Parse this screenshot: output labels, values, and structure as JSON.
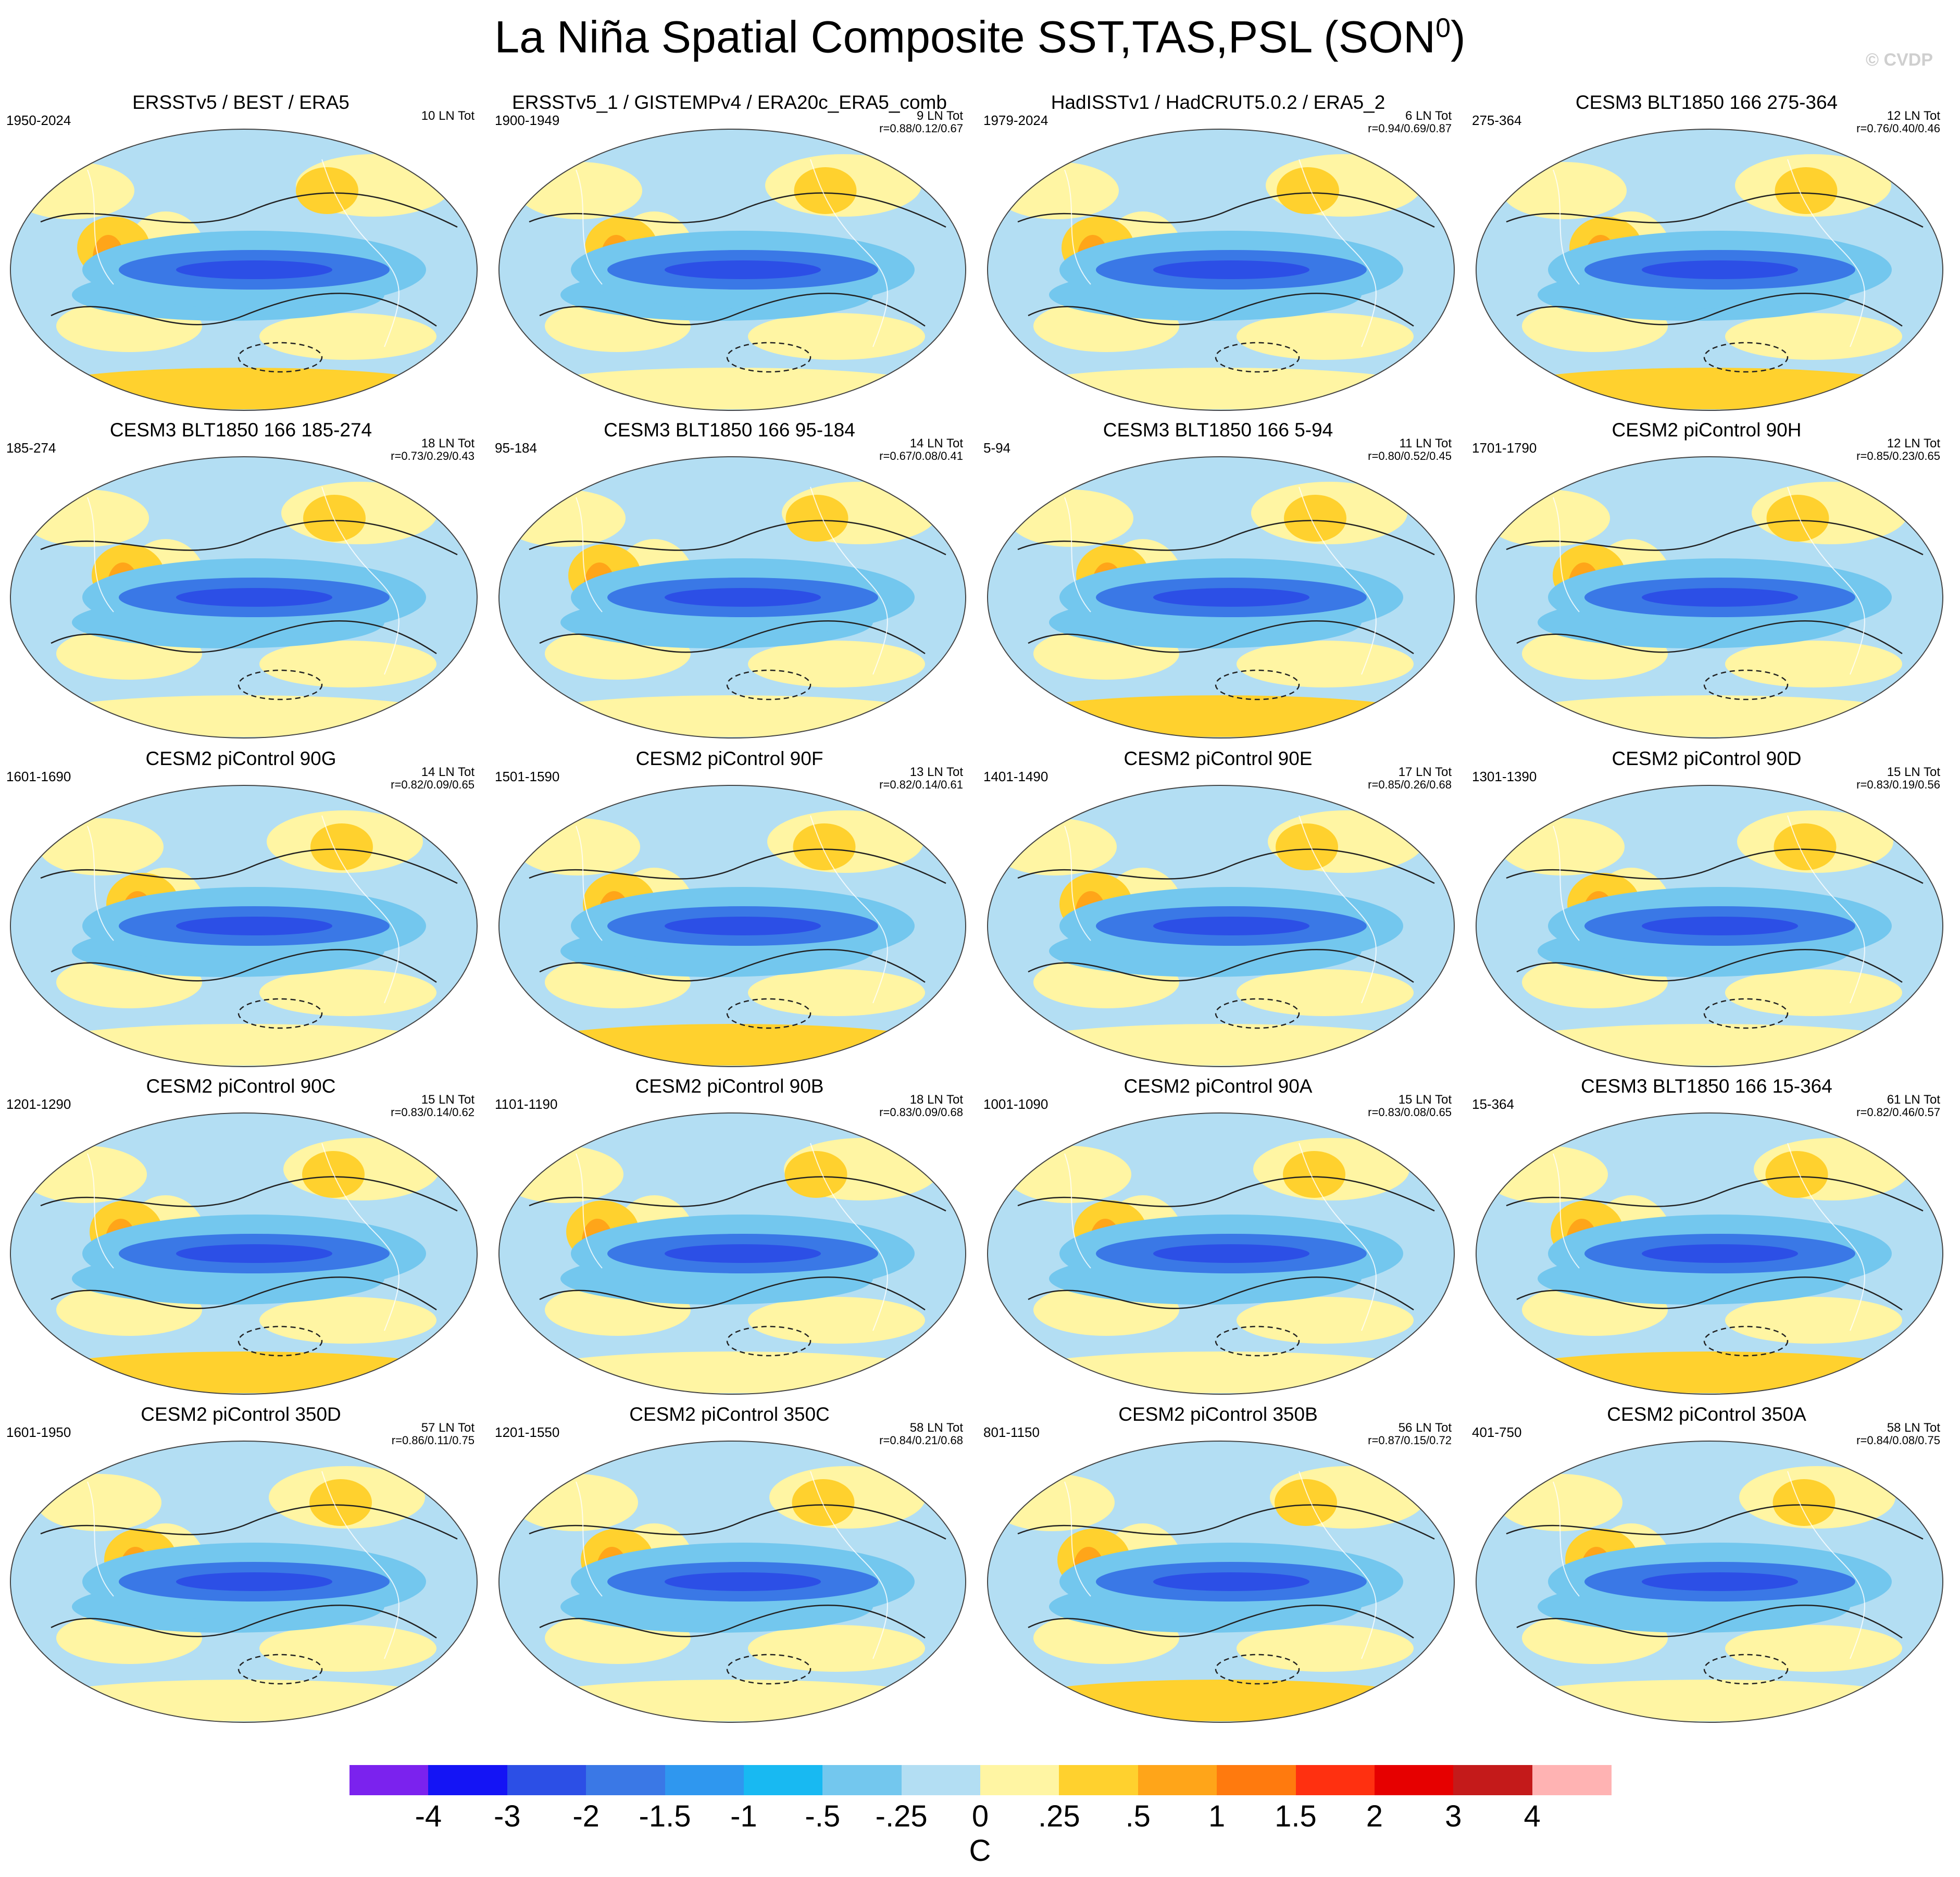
{
  "title": {
    "main": "La Niña Spatial Composite SST,TAS,PSL (SON",
    "sup": "0",
    "close": ")"
  },
  "watermark": "© CVDP",
  "panels": [
    {
      "title": "ERSSTv5 / BEST / ERA5",
      "years": "1950-2024",
      "lntot": "10 LN Tot",
      "stats": ""
    },
    {
      "title": "ERSSTv5_1 / GISTEMPv4 / ERA20c_ERA5_comb",
      "years": "1900-1949",
      "lntot": "9 LN Tot",
      "stats": "r=0.88/0.12/0.67"
    },
    {
      "title": "HadISSTv1 / HadCRUT5.0.2 / ERA5_2",
      "years": "1979-2024",
      "lntot": "6 LN Tot",
      "stats": "r=0.94/0.69/0.87"
    },
    {
      "title": "CESM3 BLT1850 166 275-364",
      "years": "275-364",
      "lntot": "12 LN Tot",
      "stats": "r=0.76/0.40/0.46"
    },
    {
      "title": "CESM3 BLT1850 166 185-274",
      "years": "185-274",
      "lntot": "18 LN Tot",
      "stats": "r=0.73/0.29/0.43"
    },
    {
      "title": "CESM3 BLT1850 166 95-184",
      "years": "95-184",
      "lntot": "14 LN Tot",
      "stats": "r=0.67/0.08/0.41"
    },
    {
      "title": "CESM3 BLT1850 166 5-94",
      "years": "5-94",
      "lntot": "11 LN Tot",
      "stats": "r=0.80/0.52/0.45"
    },
    {
      "title": "CESM2 piControl 90H",
      "years": "1701-1790",
      "lntot": "12 LN Tot",
      "stats": "r=0.85/0.23/0.65"
    },
    {
      "title": "CESM2 piControl 90G",
      "years": "1601-1690",
      "lntot": "14 LN Tot",
      "stats": "r=0.82/0.09/0.65"
    },
    {
      "title": "CESM2 piControl 90F",
      "years": "1501-1590",
      "lntot": "13 LN Tot",
      "stats": "r=0.82/0.14/0.61"
    },
    {
      "title": "CESM2 piControl 90E",
      "years": "1401-1490",
      "lntot": "17 LN Tot",
      "stats": "r=0.85/0.26/0.68"
    },
    {
      "title": "CESM2 piControl 90D",
      "years": "1301-1390",
      "lntot": "15 LN Tot",
      "stats": "r=0.83/0.19/0.56"
    },
    {
      "title": "CESM2 piControl 90C",
      "years": "1201-1290",
      "lntot": "15 LN Tot",
      "stats": "r=0.83/0.14/0.62"
    },
    {
      "title": "CESM2 piControl 90B",
      "years": "1101-1190",
      "lntot": "18 LN Tot",
      "stats": "r=0.83/0.09/0.68"
    },
    {
      "title": "CESM2 piControl 90A",
      "years": "1001-1090",
      "lntot": "15 LN Tot",
      "stats": "r=0.83/0.08/0.65"
    },
    {
      "title": "CESM3 BLT1850 166 15-364",
      "years": "15-364",
      "lntot": "61 LN Tot",
      "stats": "r=0.82/0.46/0.57"
    },
    {
      "title": "CESM2 piControl 350D",
      "years": "1601-1950",
      "lntot": "57 LN Tot",
      "stats": "r=0.86/0.11/0.75"
    },
    {
      "title": "CESM2 piControl 350C",
      "years": "1201-1550",
      "lntot": "58 LN Tot",
      "stats": "r=0.84/0.21/0.68"
    },
    {
      "title": "CESM2 piControl 350B",
      "years": "801-1150",
      "lntot": "56 LN Tot",
      "stats": "r=0.87/0.15/0.72"
    },
    {
      "title": "CESM2 piControl 350A",
      "years": "401-750",
      "lntot": "58 LN Tot",
      "stats": "r=0.84/0.08/0.75"
    }
  ],
  "colorbar": {
    "colors": [
      "#7b22ee",
      "#1414f5",
      "#2c4fe6",
      "#3a78e6",
      "#2f97ef",
      "#18b9f2",
      "#73c7ee",
      "#b3def3",
      "#fff5a3",
      "#ffd12e",
      "#ffa519",
      "#ff7a0e",
      "#ff3010",
      "#e60000",
      "#c41a1a",
      "#ffb3b3"
    ],
    "labels": [
      "-4",
      "-3",
      "-2",
      "-1.5",
      "-1",
      "-.5",
      "-.25",
      "0",
      ".25",
      ".5",
      "1",
      "1.5",
      "2",
      "3",
      "4"
    ],
    "unit": "C"
  },
  "map_colors": {
    "ocean": "#b3def3",
    "cold1": "#73c7ee",
    "cold2": "#3a78e6",
    "cold3": "#2c4fe6",
    "warm1": "#fff5a3",
    "warm2": "#ffd12e",
    "warm3": "#ffa519"
  }
}
